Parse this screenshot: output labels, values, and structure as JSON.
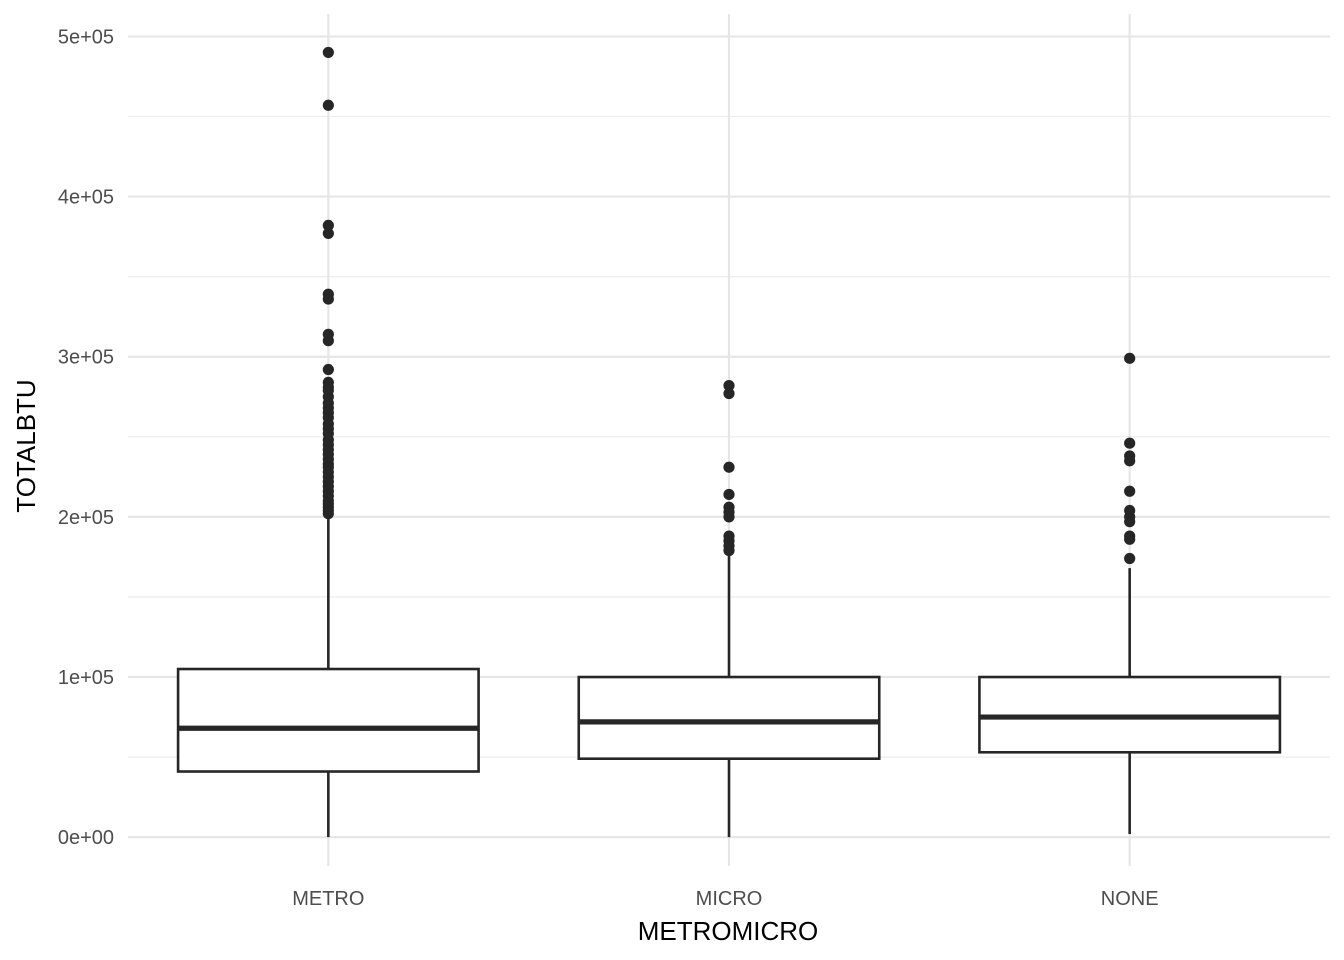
{
  "chart_data": {
    "type": "boxplot",
    "xlabel": "METROMICRO",
    "ylabel": "TOTALBTU",
    "ylim": [
      -18000,
      514000
    ],
    "y_ticks": [
      0,
      100000,
      200000,
      300000,
      400000,
      500000
    ],
    "y_tick_labels": [
      "0e+00",
      "1e+05",
      "2e+05",
      "3e+05",
      "4e+05",
      "5e+05"
    ],
    "grid": true,
    "legend": "none",
    "categories": [
      "METRO",
      "MICRO",
      "NONE"
    ],
    "boxes": [
      {
        "category": "METRO",
        "whisker_low": 0,
        "q1": 41000,
        "median": 68000,
        "q3": 105000,
        "whisker_high": 200000,
        "outliers": [
          490000,
          457000,
          382000,
          377000,
          339000,
          336000,
          314000,
          310000,
          292000,
          284000,
          281000,
          279000,
          275000,
          271000,
          268000,
          265000,
          262000,
          258000,
          255000,
          252000,
          248000,
          245000,
          242000,
          239000,
          236000,
          233000,
          231000,
          228000,
          225000,
          222000,
          219000,
          216000,
          213000,
          210000,
          208000,
          206000,
          204000,
          202000
        ]
      },
      {
        "category": "MICRO",
        "whisker_low": 0,
        "q1": 49000,
        "median": 72000,
        "q3": 100000,
        "whisker_high": 178000,
        "outliers": [
          282000,
          277000,
          231000,
          214000,
          206000,
          203000,
          200000,
          188000,
          185000,
          182000,
          179000
        ]
      },
      {
        "category": "NONE",
        "whisker_low": 2000,
        "q1": 53000,
        "median": 75000,
        "q3": 100000,
        "whisker_high": 168000,
        "outliers": [
          299000,
          246000,
          238000,
          235000,
          216000,
          204000,
          200000,
          197000,
          188000,
          186000,
          174000
        ]
      }
    ]
  }
}
